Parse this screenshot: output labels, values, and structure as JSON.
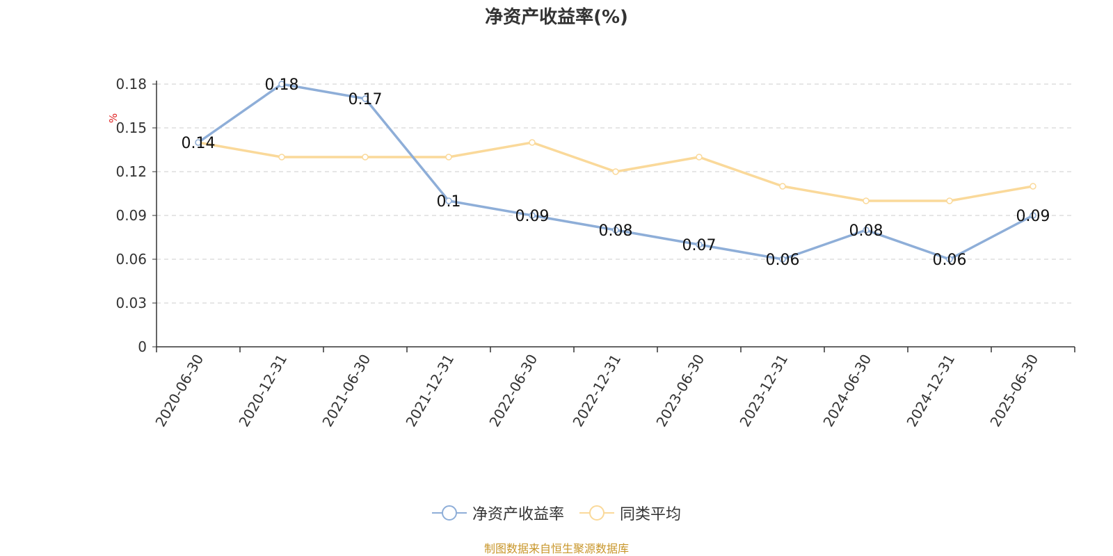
{
  "chart_data": {
    "type": "line",
    "title": "净资产收益率(%)",
    "ylabel": "%",
    "categories": [
      "2020-06-30",
      "2020-12-31",
      "2021-06-30",
      "2021-12-31",
      "2022-06-30",
      "2022-12-31",
      "2023-06-30",
      "2023-12-31",
      "2024-06-30",
      "2024-12-31",
      "2025-06-30"
    ],
    "yticks": [
      "0",
      "0.03",
      "0.06",
      "0.09",
      "0.12",
      "0.15",
      "0.18"
    ],
    "ylim": [
      0,
      0.18
    ],
    "grid": true,
    "legend_position": "bottom-center",
    "series": [
      {
        "name": "净资产收益率",
        "color": "#8eaed8",
        "values": [
          0.14,
          0.18,
          0.17,
          0.1,
          0.09,
          0.08,
          0.07,
          0.06,
          0.08,
          0.06,
          0.09
        ],
        "labels": [
          "0.14",
          "0.18",
          "0.17",
          "0.1",
          "0.09",
          "0.08",
          "0.07",
          "0.06",
          "0.08",
          "0.06",
          "0.09"
        ]
      },
      {
        "name": "同类平均",
        "color": "#fad99a",
        "values": [
          0.14,
          0.13,
          0.13,
          0.13,
          0.14,
          0.12,
          0.13,
          0.11,
          0.1,
          0.1,
          0.11
        ]
      }
    ]
  },
  "footer": {
    "source": "制图数据来自恒生聚源数据库"
  }
}
